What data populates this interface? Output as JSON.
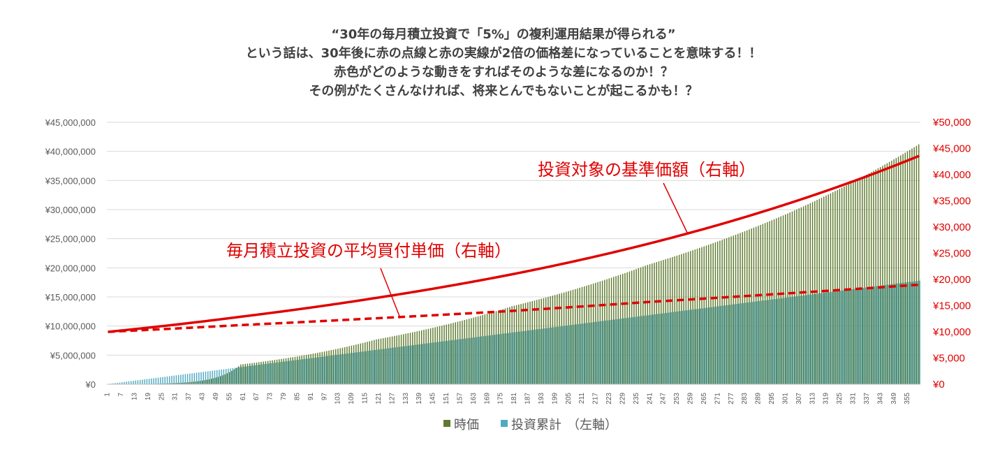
{
  "title_lines": [
    "“30年の毎月積立投資で「5%」の複利運用結果が得られる”",
    "という話は、30年後に赤の点線と赤の実線が2倍の価格差になっていることを意味する！！",
    "赤色がどのような動きをすればそのような差になるのか！？",
    "その例がたくさんなければ、将来とんでもないことが起こるかも！？"
  ],
  "chart_data": {
    "type": "bar",
    "months": 360,
    "x_tick_start": 1,
    "x_tick_step": 6,
    "x_tick_last": 355,
    "left_axis": {
      "range": [
        0,
        45000000
      ],
      "ticks": [
        "¥0",
        "¥5,000,000",
        "¥10,000,000",
        "¥15,000,000",
        "¥20,000,000",
        "¥25,000,000",
        "¥30,000,000",
        "¥35,000,000",
        "¥40,000,000",
        "¥45,000,000"
      ]
    },
    "right_axis": {
      "range": [
        0,
        50000
      ],
      "ticks": [
        "¥0",
        "¥5,000",
        "¥10,000",
        "¥15,000",
        "¥20,000",
        "¥25,000",
        "¥30,000",
        "¥35,000",
        "¥40,000",
        "¥45,000",
        "¥50,000"
      ],
      "color": "#e00000"
    },
    "series": [
      {
        "name": "時価",
        "kind": "bar",
        "axis": "left",
        "color": "#5f7a2e",
        "key_points": [
          [
            1,
            10000
          ],
          [
            60,
            3400000
          ],
          [
            120,
            7700000
          ],
          [
            180,
            13400000
          ],
          [
            240,
            20500000
          ],
          [
            300,
            29000000
          ],
          [
            360,
            41200000
          ]
        ]
      },
      {
        "name": "投資累計",
        "kind": "bar",
        "axis": "left",
        "color": "#4fa9c2",
        "key_points": [
          [
            1,
            50000
          ],
          [
            360,
            17800000
          ]
        ]
      },
      {
        "name": "投資対象の基準価額",
        "kind": "line",
        "style": "solid",
        "axis": "right",
        "color": "#e00000",
        "key_points": [
          [
            1,
            10000
          ],
          [
            60,
            12900.0
          ],
          [
            120,
            16500
          ],
          [
            180,
            21000
          ],
          [
            240,
            26800
          ],
          [
            300,
            34200
          ],
          [
            360,
            43600
          ]
        ]
      },
      {
        "name": "毎月積立投資の平均買付単価",
        "kind": "line",
        "style": "dashed",
        "axis": "right",
        "color": "#e00000",
        "key_points": [
          [
            1,
            10000
          ],
          [
            60,
            11300
          ],
          [
            120,
            12600
          ],
          [
            180,
            14000
          ],
          [
            240,
            15700
          ],
          [
            300,
            17300
          ],
          [
            360,
            19000
          ]
        ]
      }
    ],
    "annotations": {
      "solid_line_label": "投資対象の基準価額（右軸）",
      "dashed_line_label": "毎月積立投資の平均買付単価（右軸）"
    },
    "legend": {
      "items": [
        "時価",
        "投資累計"
      ],
      "suffix": "（左軸）",
      "placement": "bottom-center"
    }
  }
}
